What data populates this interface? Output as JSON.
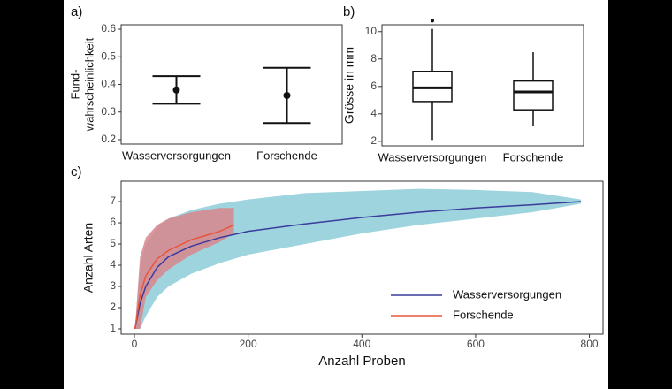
{
  "chart_data": [
    {
      "type": "errorbar",
      "label": "a)",
      "ylabel": [
        "Fund-",
        "wahrscheinlichkeit"
      ],
      "categories": [
        "Wasserversorgungen",
        "Forschende"
      ],
      "values": [
        0.38,
        0.36
      ],
      "lower": [
        0.33,
        0.26
      ],
      "upper": [
        0.43,
        0.46
      ],
      "color": "#111111",
      "ylim": [
        0.184,
        0.616
      ],
      "yticks": [
        0.2,
        0.3,
        0.4,
        0.5,
        0.6
      ]
    },
    {
      "type": "box",
      "label": "b)",
      "ylabel": "Grösse in mm",
      "categories": [
        "Wasserversorgungen",
        "Forschende"
      ],
      "whislo": [
        2.1,
        3.1
      ],
      "q1": [
        4.9,
        4.3
      ],
      "med": [
        5.9,
        5.6
      ],
      "q3": [
        7.1,
        6.4
      ],
      "whishi": [
        10.2,
        8.5
      ],
      "fliers": [
        [
          10.8
        ],
        []
      ],
      "color": "#111111",
      "ylim": [
        1.67,
        10.5
      ],
      "yticks": [
        2,
        4,
        6,
        8,
        10
      ]
    },
    {
      "type": "line",
      "label": "c)",
      "xlabel": "Anzahl Proben",
      "ylabel": "Anzahl Arten",
      "series": [
        {
          "name": "Wasserversorgungen",
          "color": "#3b3b9c",
          "band_color": "#9dd4de",
          "x": [
            1,
            10,
            20,
            40,
            60,
            100,
            150,
            200,
            300,
            400,
            500,
            600,
            700,
            785
          ],
          "values": [
            1,
            2.2,
            3,
            3.9,
            4.4,
            4.9,
            5.3,
            5.6,
            5.95,
            6.25,
            6.5,
            6.7,
            6.85,
            7.0
          ],
          "lower": [
            1,
            1,
            1.6,
            2.5,
            3,
            3.6,
            4.1,
            4.5,
            5,
            5.5,
            5.9,
            6.2,
            6.5,
            6.9
          ],
          "upper": [
            1,
            4,
            5,
            5.8,
            6.2,
            6.6,
            6.9,
            7.1,
            7.4,
            7.5,
            7.6,
            7.55,
            7.45,
            7.1
          ]
        },
        {
          "name": "Forschende",
          "color": "#e8553a",
          "band_color": "#d9868d",
          "x": [
            1,
            10,
            20,
            40,
            60,
            100,
            150,
            175
          ],
          "values": [
            1,
            2.6,
            3.5,
            4.3,
            4.7,
            5.2,
            5.6,
            5.9
          ],
          "lower": [
            1,
            1,
            2.5,
            3.3,
            3.8,
            4.5,
            5.1,
            5.5
          ],
          "upper": [
            1,
            4.4,
            5.3,
            5.9,
            6.2,
            6.5,
            6.7,
            6.7
          ]
        }
      ],
      "xlim": [
        -23.3,
        824
      ],
      "xticks": [
        0,
        200,
        400,
        600,
        800
      ],
      "ylim": [
        0.75,
        7.96
      ],
      "yticks": [
        1,
        2,
        3,
        4,
        5,
        6,
        7
      ],
      "legend": "lower right"
    }
  ]
}
